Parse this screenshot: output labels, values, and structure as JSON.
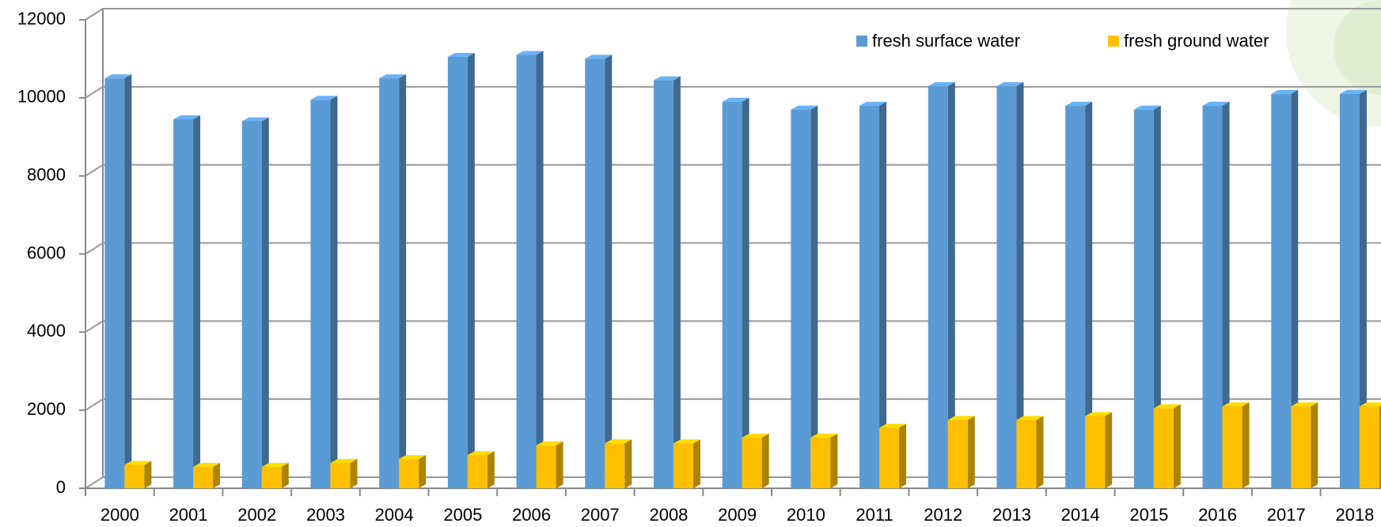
{
  "chart_data": {
    "type": "bar",
    "categories": [
      "2000",
      "2001",
      "2002",
      "2003",
      "2004",
      "2005",
      "2006",
      "2007",
      "2008",
      "2009",
      "2010",
      "2011",
      "2012",
      "2013",
      "2014",
      "2015",
      "2016",
      "2017",
      "2018"
    ],
    "series": [
      {
        "name": "fresh surface water",
        "color": "#5b9bd5",
        "values": [
          10500,
          9450,
          9400,
          9950,
          10500,
          11050,
          11100,
          11000,
          10450,
          9900,
          9700,
          9800,
          10300,
          10300,
          9800,
          9700,
          9800,
          10100,
          10100
        ]
      },
      {
        "name": "fresh ground water",
        "color": "#ffc000",
        "values": [
          600,
          550,
          550,
          650,
          750,
          850,
          1100,
          1150,
          1150,
          1300,
          1300,
          1550,
          1750,
          1750,
          1850,
          2050,
          2100,
          2100,
          2100
        ]
      }
    ],
    "ylim": [
      0,
      12000
    ],
    "yticks": [
      0,
      2000,
      4000,
      6000,
      8000,
      10000,
      12000
    ],
    "grid": true
  }
}
